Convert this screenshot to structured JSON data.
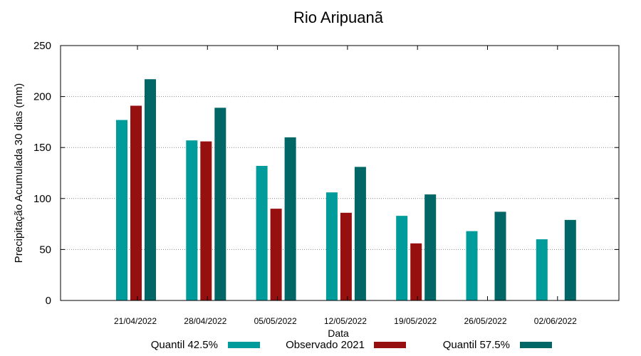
{
  "chart_data": {
    "type": "bar",
    "title": "Rio Aripuanã",
    "xlabel": "Data",
    "ylabel": "Precipitação Acumulada 30 dias (mm)",
    "ylim": [
      0,
      250
    ],
    "yticks": [
      0,
      50,
      100,
      150,
      200,
      250
    ],
    "grid": "horizontal dotted",
    "legend_position": "bottom",
    "categories": [
      "21/04/2022",
      "28/04/2022",
      "05/05/2022",
      "12/05/2022",
      "19/05/2022",
      "26/05/2022",
      "02/06/2022"
    ],
    "series": [
      {
        "name": "Quantil 42.5%",
        "color": "#009b9b",
        "values": [
          177,
          157,
          132,
          106,
          83,
          68,
          60
        ]
      },
      {
        "name": "Observado 2021",
        "color": "#961010",
        "values": [
          191,
          156,
          90,
          86,
          56,
          null,
          null
        ]
      },
      {
        "name": "Quantil 57.5%",
        "color": "#006666",
        "values": [
          217,
          189,
          160,
          131,
          104,
          87,
          79
        ]
      }
    ]
  }
}
